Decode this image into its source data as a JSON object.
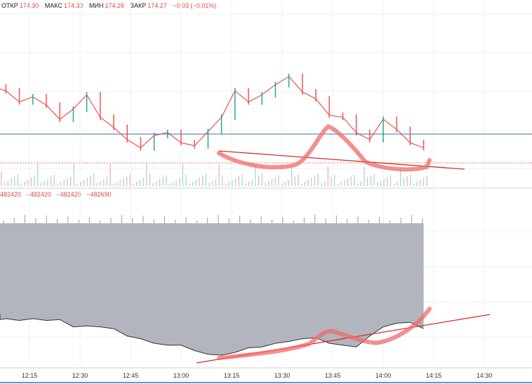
{
  "legend": {
    "open_label": "ОТКР",
    "open": "174.30",
    "high_label": "МАКС",
    "high": "174.30",
    "low_label": "МИН",
    "low": "174.26",
    "close_label": "ЗАКР",
    "close": "174.27",
    "change": "−0.03 (−0.01%)"
  },
  "indicator_legend": [
    "482420",
    "−482420",
    "−482420",
    "−482690"
  ],
  "colors": {
    "up": "#26a69a",
    "down": "#ef5350",
    "price_line": "#3b6fb5",
    "indicator_fill": "#b2b5be",
    "trend": "#d32f2f",
    "drawing": "#f06a6a",
    "last_price": "#e0483f"
  },
  "chart_data": {
    "type": "line",
    "x_ticks": [
      "12:15",
      "12:30",
      "12:45",
      "13:00",
      "13:15",
      "13:30",
      "13:45",
      "14:00",
      "14:15",
      "14:30"
    ],
    "price_series": {
      "x": [
        "12:00",
        "12:04",
        "12:08",
        "12:12",
        "12:16",
        "12:20",
        "12:24",
        "12:28",
        "12:32",
        "12:36",
        "12:40",
        "12:44",
        "12:48",
        "12:52",
        "12:56",
        "13:00",
        "13:04",
        "13:08",
        "13:12",
        "13:16",
        "13:20",
        "13:24",
        "13:28",
        "13:32",
        "13:36",
        "13:40",
        "13:44",
        "13:48",
        "13:52",
        "13:56",
        "14:00",
        "14:04",
        "14:08",
        "14:12"
      ],
      "y": [
        0.72,
        0.7,
        0.66,
        0.55,
        0.6,
        0.52,
        0.38,
        0.48,
        0.62,
        0.4,
        0.3,
        0.18,
        0.1,
        0.22,
        0.25,
        0.15,
        0.12,
        0.26,
        0.4,
        0.66,
        0.55,
        0.62,
        0.72,
        0.8,
        0.65,
        0.58,
        0.42,
        0.4,
        0.25,
        0.18,
        0.38,
        0.28,
        0.15,
        0.1
      ]
    },
    "indicator_series": {
      "x": [
        "12:00",
        "12:04",
        "12:08",
        "12:12",
        "12:16",
        "12:20",
        "12:24",
        "12:28",
        "12:32",
        "12:36",
        "12:40",
        "12:44",
        "12:48",
        "12:52",
        "12:56",
        "13:00",
        "13:04",
        "13:08",
        "13:12",
        "13:16",
        "13:20",
        "13:24",
        "13:28",
        "13:32",
        "13:36",
        "13:40",
        "13:44",
        "13:48",
        "13:52",
        "13:56",
        "14:00",
        "14:04",
        "14:08",
        "14:12"
      ],
      "y": [
        0.52,
        0.46,
        0.47,
        0.45,
        0.47,
        0.45,
        0.46,
        0.38,
        0.39,
        0.38,
        0.36,
        0.28,
        0.25,
        0.2,
        0.18,
        0.18,
        0.12,
        0.08,
        0.07,
        0.1,
        0.15,
        0.16,
        0.2,
        0.22,
        0.25,
        0.26,
        0.2,
        0.18,
        0.16,
        0.28,
        0.38,
        0.42,
        0.43,
        0.36
      ]
    }
  }
}
